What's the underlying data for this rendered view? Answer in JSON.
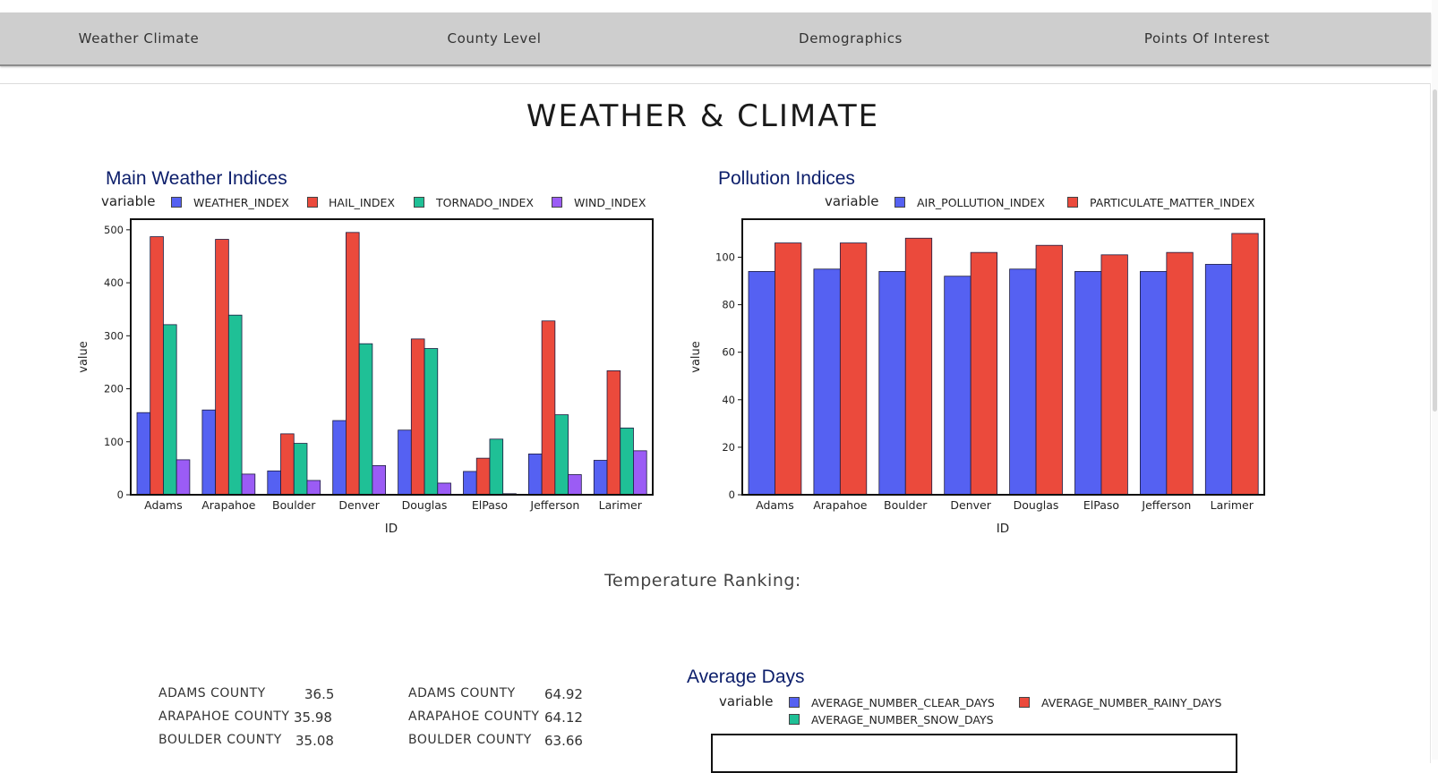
{
  "nav": {
    "items": [
      "Weather Climate",
      "County Level",
      "Demographics",
      "Points Of Interest"
    ]
  },
  "page": {
    "title": "WEATHER & CLIMATE",
    "temperature_heading": "Temperature Ranking:"
  },
  "colors": {
    "blue": "#5561f2",
    "red": "#eb4a3c",
    "teal": "#1fc096",
    "purple": "#9b5cf5",
    "title_navy": "#0b1d6a"
  },
  "charts": {
    "main": {
      "title": "Main Weather Indices",
      "legend_title": "variable",
      "xlabel": "ID",
      "ylabel": "value"
    },
    "pollution": {
      "title": "Pollution Indices",
      "legend_title": "variable",
      "xlabel": "ID",
      "ylabel": "value"
    },
    "avg_days": {
      "title": "Average Days",
      "legend_title": "variable",
      "series_names": [
        "AVERAGE_NUMBER_CLEAR_DAYS",
        "AVERAGE_NUMBER_RAINY_DAYS",
        "AVERAGE_NUMBER_SNOW_DAYS"
      ]
    }
  },
  "chart_data": [
    {
      "type": "bar",
      "title": "Main Weather Indices",
      "categories": [
        "Adams",
        "Arapahoe",
        "Boulder",
        "Denver",
        "Douglas",
        "ElPaso",
        "Jefferson",
        "Larimer"
      ],
      "series": [
        {
          "name": "WEATHER_INDEX",
          "color": "#5561f2",
          "values": [
            155,
            160,
            45,
            140,
            122,
            44,
            77,
            65
          ]
        },
        {
          "name": "HAIL_INDEX",
          "color": "#eb4a3c",
          "values": [
            487,
            482,
            115,
            495,
            294,
            69,
            328,
            234
          ]
        },
        {
          "name": "TORNADO_INDEX",
          "color": "#1fc096",
          "values": [
            321,
            339,
            97,
            285,
            276,
            105,
            151,
            126
          ]
        },
        {
          "name": "WIND_INDEX",
          "color": "#9b5cf5",
          "values": [
            66,
            39,
            27,
            55,
            22,
            2,
            38,
            83
          ]
        }
      ],
      "xlabel": "ID",
      "ylabel": "value",
      "ylim": [
        0,
        520
      ],
      "yticks": [
        0,
        100,
        200,
        300,
        400,
        500
      ],
      "grid": false,
      "legend": "top"
    },
    {
      "type": "bar",
      "title": "Pollution Indices",
      "categories": [
        "Adams",
        "Arapahoe",
        "Boulder",
        "Denver",
        "Douglas",
        "ElPaso",
        "Jefferson",
        "Larimer"
      ],
      "series": [
        {
          "name": "AIR_POLLUTION_INDEX",
          "color": "#5561f2",
          "values": [
            94,
            95,
            94,
            92,
            95,
            94,
            94,
            97
          ]
        },
        {
          "name": "PARTICULATE_MATTER_INDEX",
          "color": "#eb4a3c",
          "values": [
            106,
            106,
            108,
            102,
            105,
            101,
            102,
            110
          ]
        }
      ],
      "xlabel": "ID",
      "ylabel": "value",
      "ylim": [
        0,
        116
      ],
      "yticks": [
        0,
        20,
        40,
        60,
        80,
        100
      ],
      "grid": false,
      "legend": "top"
    }
  ],
  "temperature_ranking": {
    "left": [
      {
        "county": "ADAMS COUNTY",
        "value": "36.5"
      },
      {
        "county": "ARAPAHOE COUNTY",
        "value": "35.98"
      },
      {
        "county": "BOULDER COUNTY",
        "value": "35.08"
      }
    ],
    "right": [
      {
        "county": "ADAMS COUNTY",
        "value": "64.92"
      },
      {
        "county": "ARAPAHOE COUNTY",
        "value": "64.12"
      },
      {
        "county": "BOULDER COUNTY",
        "value": "63.66"
      }
    ]
  }
}
